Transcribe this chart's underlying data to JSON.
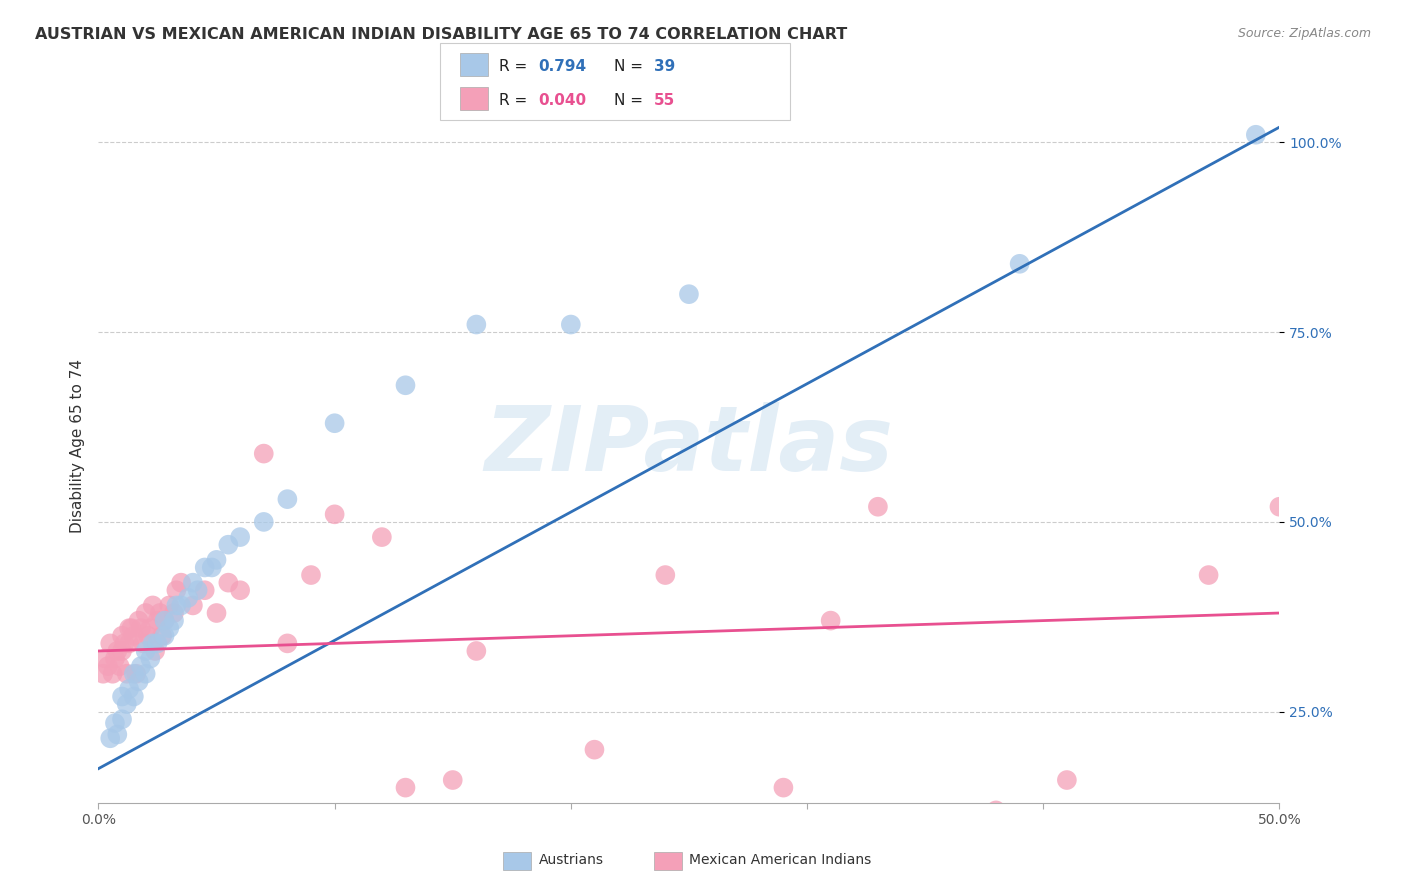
{
  "title": "AUSTRIAN VS MEXICAN AMERICAN INDIAN DISABILITY AGE 65 TO 74 CORRELATION CHART",
  "source": "Source: ZipAtlas.com",
  "ylabel": "Disability Age 65 to 74",
  "xlim": [
    0.0,
    0.5
  ],
  "ylim": [
    0.13,
    1.07
  ],
  "blue_R": "0.794",
  "blue_N": "39",
  "pink_R": "0.040",
  "pink_N": "55",
  "blue_color": "#a8c8e8",
  "pink_color": "#f4a0b8",
  "blue_line_color": "#3070b8",
  "pink_line_color": "#e85090",
  "legend_label_blue": "Austrians",
  "legend_label_pink": "Mexican American Indians",
  "watermark": "ZIPatlas",
  "blue_points_x": [
    0.005,
    0.007,
    0.008,
    0.01,
    0.01,
    0.012,
    0.013,
    0.015,
    0.015,
    0.017,
    0.018,
    0.02,
    0.02,
    0.022,
    0.023,
    0.025,
    0.028,
    0.028,
    0.03,
    0.032,
    0.033,
    0.035,
    0.038,
    0.04,
    0.042,
    0.045,
    0.048,
    0.05,
    0.055,
    0.06,
    0.07,
    0.08,
    0.1,
    0.13,
    0.16,
    0.2,
    0.25,
    0.39,
    0.49
  ],
  "blue_points_y": [
    0.215,
    0.235,
    0.22,
    0.24,
    0.27,
    0.26,
    0.28,
    0.27,
    0.3,
    0.29,
    0.31,
    0.3,
    0.33,
    0.32,
    0.34,
    0.34,
    0.35,
    0.37,
    0.36,
    0.37,
    0.39,
    0.39,
    0.4,
    0.42,
    0.41,
    0.44,
    0.44,
    0.45,
    0.47,
    0.48,
    0.5,
    0.53,
    0.63,
    0.68,
    0.76,
    0.76,
    0.8,
    0.84,
    1.01
  ],
  "pink_points_x": [
    0.002,
    0.003,
    0.004,
    0.005,
    0.006,
    0.007,
    0.008,
    0.009,
    0.01,
    0.01,
    0.011,
    0.012,
    0.013,
    0.013,
    0.014,
    0.015,
    0.016,
    0.017,
    0.018,
    0.019,
    0.02,
    0.021,
    0.022,
    0.023,
    0.024,
    0.025,
    0.026,
    0.027,
    0.028,
    0.03,
    0.032,
    0.033,
    0.035,
    0.04,
    0.045,
    0.05,
    0.055,
    0.06,
    0.07,
    0.08,
    0.09,
    0.1,
    0.12,
    0.13,
    0.15,
    0.16,
    0.21,
    0.24,
    0.29,
    0.31,
    0.33,
    0.38,
    0.41,
    0.47,
    0.5
  ],
  "pink_points_y": [
    0.3,
    0.32,
    0.31,
    0.34,
    0.3,
    0.32,
    0.33,
    0.31,
    0.33,
    0.35,
    0.34,
    0.3,
    0.36,
    0.34,
    0.36,
    0.35,
    0.3,
    0.37,
    0.36,
    0.34,
    0.38,
    0.35,
    0.36,
    0.39,
    0.33,
    0.37,
    0.38,
    0.35,
    0.37,
    0.39,
    0.38,
    0.41,
    0.42,
    0.39,
    0.41,
    0.38,
    0.42,
    0.41,
    0.59,
    0.34,
    0.43,
    0.51,
    0.48,
    0.15,
    0.16,
    0.33,
    0.2,
    0.43,
    0.15,
    0.37,
    0.52,
    0.12,
    0.16,
    0.43,
    0.52
  ],
  "blue_line_x0": 0.0,
  "blue_line_y0": 0.175,
  "blue_line_x1": 0.5,
  "blue_line_y1": 1.02,
  "pink_line_x0": 0.0,
  "pink_line_y0": 0.33,
  "pink_line_x1": 0.5,
  "pink_line_y1": 0.38
}
